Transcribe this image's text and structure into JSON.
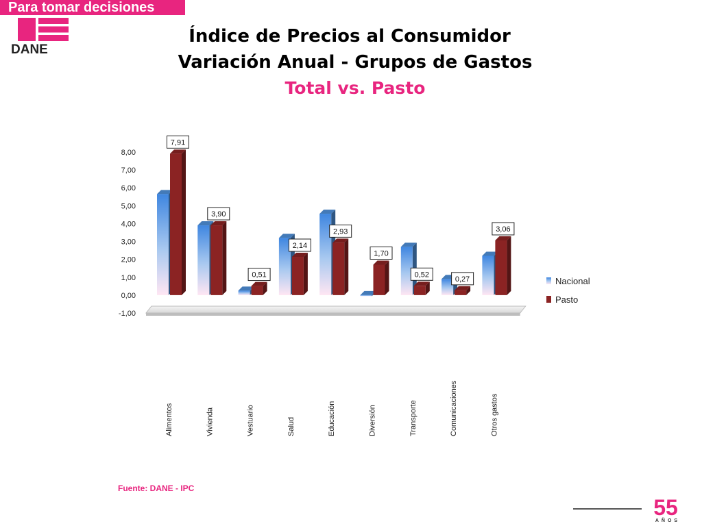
{
  "header": {
    "banner_text": "Para tomar decisiones",
    "logo_text": "DANE",
    "brand_color": "#e8257f"
  },
  "title": {
    "line1": "Índice de Precios al Consumidor",
    "line2": "Variación Anual - Grupos de Gastos",
    "line3": "Total vs. Pasto"
  },
  "chart_data": {
    "type": "bar",
    "categories": [
      "Alimentos",
      "Vivienda",
      "Vestuario",
      "Salud",
      "Educación",
      "Diversión",
      "Transporte",
      "Comunicaciones",
      "Otros gastos"
    ],
    "series": [
      {
        "name": "Nacional",
        "values": [
          5.65,
          3.9,
          0.25,
          3.2,
          4.55,
          -0.05,
          2.7,
          0.9,
          2.2
        ],
        "color": "#4f8fd9"
      },
      {
        "name": "Pasto",
        "values": [
          7.91,
          3.9,
          0.51,
          2.14,
          2.93,
          1.7,
          0.52,
          0.27,
          3.06
        ],
        "color": "#8b2323"
      }
    ],
    "data_labels": [
      "7,91",
      "3,90",
      "0,51",
      "2,14",
      "2,93",
      "1,70",
      "0,52",
      "0,27",
      "3,06"
    ],
    "ylim": [
      -1,
      8
    ],
    "yticks": [
      "-1,00",
      "0,00",
      "1,00",
      "2,00",
      "3,00",
      "4,00",
      "5,00",
      "6,00",
      "7,00",
      "8,00"
    ],
    "legend_position": "right",
    "grid": false
  },
  "footer": {
    "source": "Fuente: DANE - IPC",
    "anniversary_number": "55",
    "anniversary_text": "AÑOS"
  }
}
